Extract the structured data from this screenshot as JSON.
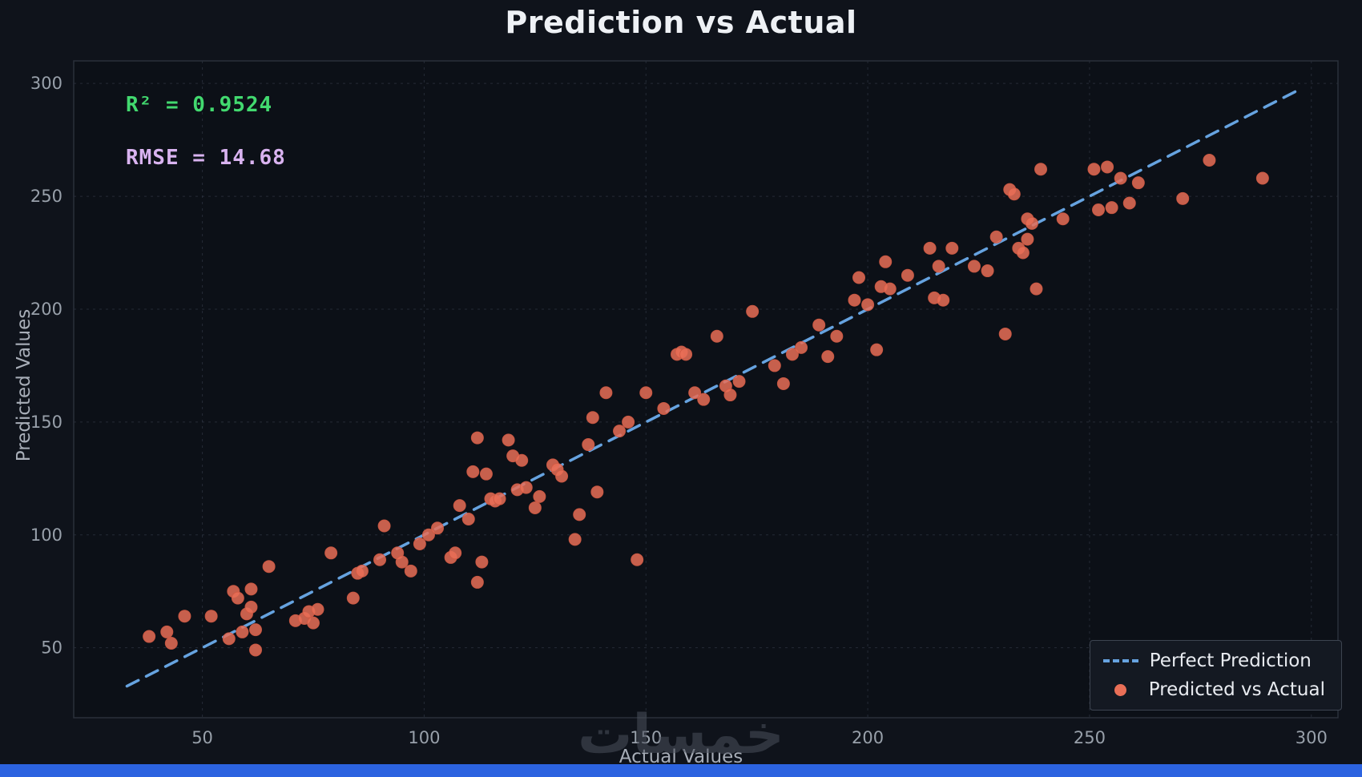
{
  "title": "Prediction vs Actual",
  "watermark": "خمسات",
  "annotations": {
    "r2": "R² = 0.9524",
    "rmse": "RMSE = 14.68"
  },
  "colors": {
    "figure_bg": "#0f131b",
    "axes_bg": "#0c1017",
    "grid": "#3a4150",
    "spine": "#2a303a",
    "tick_text": "#98a0aa",
    "scatter": "#e96f57",
    "scatter_edge": "#d05a44",
    "line": "#66a3e0",
    "r2_green": "#42d96f",
    "rmse_purple": "#d9b3f0",
    "bottom_bar": "#2c63e0"
  },
  "chart_data": {
    "type": "scatter",
    "title": "Prediction vs Actual",
    "xlabel": "Actual Values",
    "ylabel": "Predicted Values",
    "xlim": [
      21,
      306
    ],
    "ylim": [
      19,
      310
    ],
    "xticks": [
      50,
      100,
      150,
      200,
      250,
      300
    ],
    "yticks": [
      50,
      100,
      150,
      200,
      250,
      300
    ],
    "grid": true,
    "legend": {
      "position": "lower right",
      "entries": [
        {
          "label": "Perfect Prediction",
          "type": "dashed-line",
          "color": "#66a3e0"
        },
        {
          "label": "Predicted vs Actual",
          "type": "marker",
          "color": "#e96f57"
        }
      ]
    },
    "series": [
      {
        "name": "Perfect Prediction",
        "type": "line",
        "style": "dashed",
        "x": [
          33,
          297
        ],
        "y": [
          33,
          297
        ]
      },
      {
        "name": "Predicted vs Actual",
        "type": "scatter",
        "points": [
          [
            38,
            55
          ],
          [
            42,
            57
          ],
          [
            43,
            52
          ],
          [
            46,
            64
          ],
          [
            52,
            64
          ],
          [
            56,
            54
          ],
          [
            57,
            75
          ],
          [
            58,
            72
          ],
          [
            59,
            57
          ],
          [
            60,
            65
          ],
          [
            61,
            76
          ],
          [
            61,
            68
          ],
          [
            62,
            49
          ],
          [
            62,
            58
          ],
          [
            65,
            86
          ],
          [
            71,
            62
          ],
          [
            73,
            63
          ],
          [
            74,
            66
          ],
          [
            75,
            61
          ],
          [
            76,
            67
          ],
          [
            79,
            92
          ],
          [
            84,
            72
          ],
          [
            85,
            83
          ],
          [
            86,
            84
          ],
          [
            90,
            89
          ],
          [
            91,
            104
          ],
          [
            94,
            92
          ],
          [
            95,
            88
          ],
          [
            97,
            84
          ],
          [
            99,
            96
          ],
          [
            101,
            100
          ],
          [
            103,
            103
          ],
          [
            106,
            90
          ],
          [
            107,
            92
          ],
          [
            108,
            113
          ],
          [
            110,
            107
          ],
          [
            111,
            128
          ],
          [
            112,
            143
          ],
          [
            112,
            79
          ],
          [
            113,
            88
          ],
          [
            114,
            127
          ],
          [
            115,
            116
          ],
          [
            116,
            115
          ],
          [
            117,
            116
          ],
          [
            119,
            142
          ],
          [
            120,
            135
          ],
          [
            121,
            120
          ],
          [
            122,
            133
          ],
          [
            123,
            121
          ],
          [
            125,
            112
          ],
          [
            126,
            117
          ],
          [
            129,
            131
          ],
          [
            130,
            129
          ],
          [
            131,
            126
          ],
          [
            134,
            98
          ],
          [
            135,
            109
          ],
          [
            137,
            140
          ],
          [
            138,
            152
          ],
          [
            139,
            119
          ],
          [
            141,
            163
          ],
          [
            144,
            146
          ],
          [
            146,
            150
          ],
          [
            148,
            89
          ],
          [
            150,
            163
          ],
          [
            154,
            156
          ],
          [
            157,
            180
          ],
          [
            158,
            181
          ],
          [
            159,
            180
          ],
          [
            161,
            163
          ],
          [
            163,
            160
          ],
          [
            166,
            188
          ],
          [
            168,
            166
          ],
          [
            169,
            162
          ],
          [
            171,
            168
          ],
          [
            174,
            199
          ],
          [
            179,
            175
          ],
          [
            181,
            167
          ],
          [
            183,
            180
          ],
          [
            185,
            183
          ],
          [
            189,
            193
          ],
          [
            191,
            179
          ],
          [
            193,
            188
          ],
          [
            197,
            204
          ],
          [
            198,
            214
          ],
          [
            200,
            202
          ],
          [
            202,
            182
          ],
          [
            203,
            210
          ],
          [
            204,
            221
          ],
          [
            205,
            209
          ],
          [
            209,
            215
          ],
          [
            214,
            227
          ],
          [
            215,
            205
          ],
          [
            216,
            219
          ],
          [
            217,
            204
          ],
          [
            219,
            227
          ],
          [
            224,
            219
          ],
          [
            227,
            217
          ],
          [
            229,
            232
          ],
          [
            231,
            189
          ],
          [
            232,
            253
          ],
          [
            233,
            251
          ],
          [
            234,
            227
          ],
          [
            235,
            225
          ],
          [
            236,
            231
          ],
          [
            236,
            240
          ],
          [
            237,
            238
          ],
          [
            238,
            209
          ],
          [
            239,
            262
          ],
          [
            244,
            240
          ],
          [
            251,
            262
          ],
          [
            252,
            244
          ],
          [
            254,
            263
          ],
          [
            255,
            245
          ],
          [
            257,
            258
          ],
          [
            259,
            247
          ],
          [
            261,
            256
          ],
          [
            271,
            249
          ],
          [
            277,
            266
          ],
          [
            289,
            258
          ]
        ]
      }
    ]
  }
}
